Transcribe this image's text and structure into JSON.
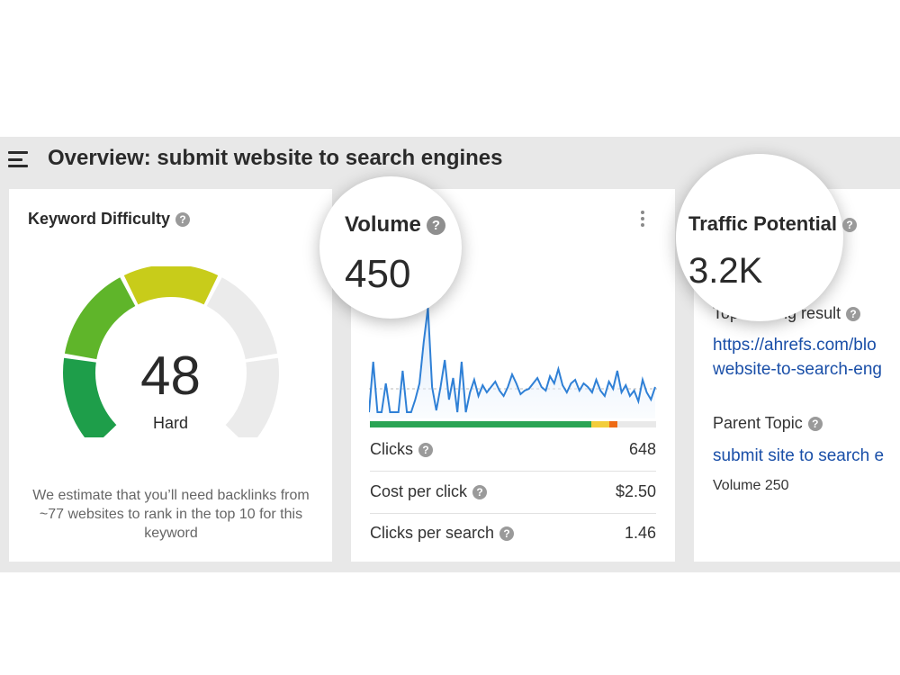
{
  "header": {
    "title": "Overview: submit website to search engines"
  },
  "keyword_difficulty": {
    "title": "Keyword Difficulty",
    "value": "48",
    "label": "Hard",
    "score_fraction": 0.48,
    "description": "We estimate that you’ll need backlinks from ~77 websites to rank in the top 10 for this keyword",
    "colors": {
      "green_dark": "#1e9e4a",
      "green": "#5fb52a",
      "yellow": "#c8cc1a",
      "track": "#ebebeb"
    }
  },
  "volume": {
    "title": "Volume",
    "value": "450",
    "color_bar": [
      {
        "color": "#2aa454",
        "fraction": 0.775
      },
      {
        "color": "#f2cd3a",
        "fraction": 0.06
      },
      {
        "color": "#ee6a14",
        "fraction": 0.03
      },
      {
        "color": "#e9e9e9",
        "fraction": 0.135
      }
    ],
    "metrics": [
      {
        "label": "Clicks",
        "value": "648"
      },
      {
        "label": "Cost per click",
        "value": "$2.50"
      },
      {
        "label": "Clicks per search",
        "value": "1.46"
      }
    ],
    "sparkline_color": "#2f80d6"
  },
  "traffic_potential": {
    "title": "Traffic Potential",
    "value": "3.2K",
    "top_result_label": "Top ranking result",
    "top_result_url_line1": "https://ahrefs.com/blo",
    "top_result_url_line2": "website-to-search-eng",
    "parent_topic_label": "Parent Topic",
    "parent_topic": "submit site to search e",
    "parent_volume": "Volume 250"
  },
  "icons": {
    "help": "?"
  }
}
